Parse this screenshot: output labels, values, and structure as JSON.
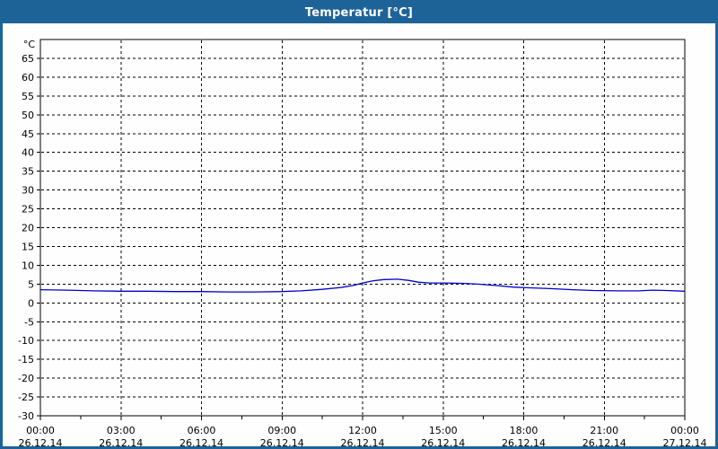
{
  "window": {
    "title": "Temperatur [°C]",
    "titlebar_color": "#1e6398",
    "border_color": "#1e6398",
    "background_color": "#fdfefd"
  },
  "chart_data": {
    "type": "line",
    "title": "Temperatur [°C]",
    "y_unit_label": "°C",
    "ylim": [
      -30,
      70
    ],
    "y_gridline_values": [
      65,
      60,
      55,
      50,
      45,
      40,
      35,
      30,
      25,
      20,
      15,
      10,
      5,
      0,
      -5,
      -10,
      -15,
      -20,
      -25
    ],
    "y_tick_labels": [
      "65",
      "60",
      "55",
      "50",
      "45",
      "40",
      "35",
      "30",
      "25",
      "20",
      "15",
      "10",
      "5",
      "0",
      "-5",
      "-10",
      "-15",
      "-20",
      "-25",
      "-30"
    ],
    "y_tick_values": [
      65,
      60,
      55,
      50,
      45,
      40,
      35,
      30,
      25,
      20,
      15,
      10,
      5,
      0,
      -5,
      -10,
      -15,
      -20,
      -25,
      -30
    ],
    "xlim_hours": [
      0,
      24
    ],
    "x_major_ticks": [
      {
        "hour": 0,
        "time": "00:00",
        "date": "26.12.14"
      },
      {
        "hour": 3,
        "time": "03:00",
        "date": "26.12.14"
      },
      {
        "hour": 6,
        "time": "06:00",
        "date": "26.12.14"
      },
      {
        "hour": 9,
        "time": "09:00",
        "date": "26.12.14"
      },
      {
        "hour": 12,
        "time": "12:00",
        "date": "26.12.14"
      },
      {
        "hour": 15,
        "time": "15:00",
        "date": "26.12.14"
      },
      {
        "hour": 18,
        "time": "18:00",
        "date": "26.12.14"
      },
      {
        "hour": 21,
        "time": "21:00",
        "date": "26.12.14"
      },
      {
        "hour": 24,
        "time": "00:00",
        "date": "27.12.14"
      }
    ],
    "x_minor_tick_hours": [
      1.5,
      4.5,
      7.5,
      10.5,
      13.5,
      16.5,
      19.5,
      22.5
    ],
    "x_gridline_hours": [
      3,
      6,
      9,
      12,
      15,
      18,
      21
    ],
    "grid": "dashed",
    "legend": "none",
    "line_color": "#0000cd",
    "axis_color": "#000000",
    "series": [
      {
        "name": "Temperatur",
        "points": [
          [
            0,
            3.5
          ],
          [
            1,
            3.4
          ],
          [
            2,
            3.2
          ],
          [
            3,
            3.1
          ],
          [
            4,
            3.1
          ],
          [
            5,
            3.0
          ],
          [
            6,
            3.0
          ],
          [
            7,
            2.9
          ],
          [
            8,
            2.9
          ],
          [
            9,
            3.0
          ],
          [
            9.7,
            3.2
          ],
          [
            10.5,
            3.6
          ],
          [
            11.2,
            4.1
          ],
          [
            11.7,
            4.7
          ],
          [
            12.0,
            5.3
          ],
          [
            12.4,
            5.9
          ],
          [
            12.8,
            6.2
          ],
          [
            13.3,
            6.3
          ],
          [
            13.7,
            6.0
          ],
          [
            14.1,
            5.5
          ],
          [
            14.5,
            5.3
          ],
          [
            15.0,
            5.3
          ],
          [
            15.7,
            5.2
          ],
          [
            16.3,
            5.0
          ],
          [
            17.0,
            4.6
          ],
          [
            17.6,
            4.2
          ],
          [
            18.2,
            4.0
          ],
          [
            19.0,
            3.8
          ],
          [
            19.8,
            3.5
          ],
          [
            20.6,
            3.3
          ],
          [
            21.5,
            3.2
          ],
          [
            22.3,
            3.2
          ],
          [
            22.8,
            3.4
          ],
          [
            23.3,
            3.3
          ],
          [
            24.0,
            3.1
          ]
        ]
      }
    ]
  }
}
